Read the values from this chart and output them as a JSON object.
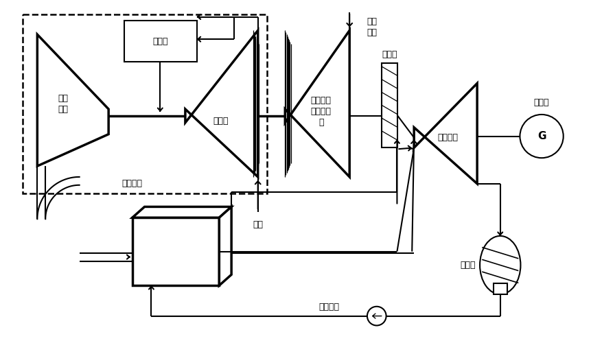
{
  "bg_color": "#ffffff",
  "lw": 1.5,
  "lwt": 2.5,
  "fs": 9,
  "labels": {
    "combustion_chamber": "燃烧室",
    "gas_turbine_part": "燃气\n涡轮",
    "compressor": "压气机",
    "gas_turbine_system": "燃气轮机",
    "coal_gas_compressor": "低、高压\n煤气压缩\n机",
    "blast_furnace_gas": "高炉\n煤气",
    "speed_reducer": "减速器",
    "steam_turbine": "蒸汽轮机",
    "generator": "发电机",
    "air": "空气",
    "waste_heat_boiler": "余热锅炉",
    "condenser": "凝汽器",
    "G": "G"
  }
}
